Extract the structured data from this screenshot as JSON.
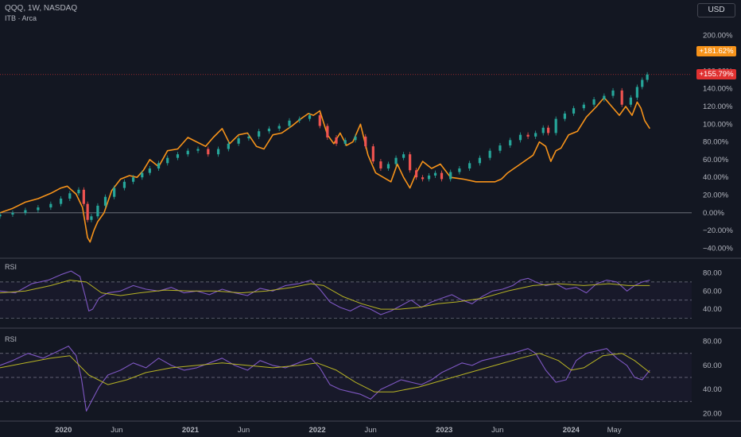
{
  "header": {
    "symbol_line": "QQQ, 1W, NASDAQ",
    "compare_line": "ITB · Arca",
    "currency_button": "USD"
  },
  "badges": {
    "itb": {
      "text": "+181.62%",
      "color": "#f7931a"
    },
    "qqq": {
      "text": "+155.79%",
      "color": "#e03131"
    }
  },
  "colors": {
    "background": "#131722",
    "itb_line": "#f7931a",
    "candle_up": "#26a69a",
    "candle_down": "#ef5350",
    "rsi_line": "#7e57c2",
    "rsi_ma": "#b7b324",
    "grid": "#2a2e39",
    "axis_text": "#b2b5be"
  },
  "chart_data": [
    {
      "type": "line",
      "title": "QQQ, 1W, NASDAQ",
      "yaxis_format": "percent",
      "ylim": [
        -45,
        215
      ],
      "yticks": [
        -40,
        -20,
        0,
        20,
        40,
        60,
        80,
        100,
        120,
        140,
        160,
        180,
        200
      ],
      "x_domain": [
        2019.5,
        2024.95
      ],
      "series": [
        {
          "name": "ITB · Arca",
          "style": "line",
          "color": "#f7931a",
          "x": [
            2019.5,
            2019.6,
            2019.7,
            2019.8,
            2019.9,
            2019.98,
            2020.03,
            2020.1,
            2020.15,
            2020.19,
            2020.21,
            2020.24,
            2020.27,
            2020.32,
            2020.38,
            2020.45,
            2020.52,
            2020.58,
            2020.63,
            2020.68,
            2020.75,
            2020.82,
            2020.9,
            2020.98,
            2021.05,
            2021.12,
            2021.18,
            2021.25,
            2021.31,
            2021.38,
            2021.45,
            2021.52,
            2021.58,
            2021.65,
            2021.72,
            2021.8,
            2021.86,
            2021.93,
            2021.97,
            2022.02,
            2022.08,
            2022.13,
            2022.18,
            2022.23,
            2022.28,
            2022.34,
            2022.4,
            2022.46,
            2022.52,
            2022.58,
            2022.63,
            2022.68,
            2022.73,
            2022.78,
            2022.83,
            2022.9,
            2022.97,
            2023.05,
            2023.15,
            2023.25,
            2023.33,
            2023.4,
            2023.45,
            2023.5,
            2023.55,
            2023.6,
            2023.65,
            2023.7,
            2023.75,
            2023.8,
            2023.84,
            2023.88,
            2023.92,
            2023.98,
            2024.05,
            2024.12,
            2024.2,
            2024.26,
            2024.32,
            2024.38,
            2024.43,
            2024.48,
            2024.52,
            2024.55,
            2024.58,
            2024.62
          ],
          "y": [
            0,
            5,
            12,
            16,
            22,
            28,
            30,
            21,
            6,
            -28,
            -33,
            -20,
            -10,
            0,
            25,
            38,
            42,
            40,
            48,
            60,
            52,
            70,
            72,
            85,
            80,
            75,
            85,
            95,
            78,
            88,
            90,
            75,
            72,
            88,
            90,
            98,
            105,
            112,
            110,
            115,
            88,
            78,
            90,
            76,
            80,
            100,
            65,
            45,
            40,
            35,
            55,
            40,
            28,
            45,
            58,
            50,
            55,
            40,
            38,
            35,
            35,
            35,
            38,
            45,
            50,
            55,
            60,
            65,
            80,
            75,
            58,
            70,
            73,
            88,
            92,
            108,
            120,
            130,
            120,
            110,
            120,
            110,
            125,
            118,
            104,
            95
          ]
        },
        {
          "name": "QQQ",
          "style": "candle",
          "x": [
            2019.5,
            2019.6,
            2019.7,
            2019.8,
            2019.9,
            2019.98,
            2020.05,
            2020.12,
            2020.16,
            2020.19,
            2020.22,
            2020.27,
            2020.33,
            2020.4,
            2020.48,
            2020.55,
            2020.62,
            2020.68,
            2020.75,
            2020.82,
            2020.9,
            2020.98,
            2021.06,
            2021.14,
            2021.22,
            2021.3,
            2021.38,
            2021.46,
            2021.54,
            2021.62,
            2021.7,
            2021.78,
            2021.86,
            2021.94,
            2022.02,
            2022.08,
            2022.15,
            2022.22,
            2022.3,
            2022.38,
            2022.44,
            2022.5,
            2022.56,
            2022.62,
            2022.68,
            2022.73,
            2022.78,
            2022.83,
            2022.88,
            2022.93,
            2022.98,
            2023.05,
            2023.12,
            2023.2,
            2023.28,
            2023.36,
            2023.44,
            2023.52,
            2023.6,
            2023.66,
            2023.72,
            2023.78,
            2023.82,
            2023.88,
            2023.95,
            2024.02,
            2024.1,
            2024.18,
            2024.26,
            2024.33,
            2024.4,
            2024.47,
            2024.52,
            2024.56,
            2024.6
          ],
          "y": [
            -2,
            0,
            3,
            6,
            10,
            16,
            22,
            26,
            10,
            -8,
            -4,
            8,
            18,
            28,
            35,
            40,
            45,
            50,
            56,
            62,
            66,
            70,
            72,
            66,
            72,
            78,
            84,
            86,
            92,
            95,
            98,
            104,
            106,
            110,
            98,
            85,
            78,
            82,
            86,
            75,
            58,
            50,
            55,
            62,
            66,
            48,
            40,
            38,
            42,
            45,
            38,
            46,
            50,
            56,
            62,
            70,
            76,
            82,
            88,
            86,
            90,
            96,
            90,
            106,
            112,
            118,
            122,
            128,
            132,
            138,
            122,
            130,
            142,
            150,
            156
          ]
        }
      ]
    },
    {
      "type": "line",
      "title": "RSI",
      "ylim": [
        20,
        90
      ],
      "yticks": [
        40,
        60,
        80
      ],
      "bands": [
        70,
        50,
        30
      ],
      "x_domain": [
        2019.5,
        2024.95
      ],
      "series": [
        {
          "name": "RSI",
          "color": "#7e57c2",
          "x": [
            2019.5,
            2019.62,
            2019.75,
            2019.88,
            2019.98,
            2020.06,
            2020.13,
            2020.17,
            2020.2,
            2020.23,
            2020.28,
            2020.35,
            2020.45,
            2020.55,
            2020.65,
            2020.75,
            2020.85,
            2020.95,
            2021.05,
            2021.15,
            2021.25,
            2021.35,
            2021.45,
            2021.55,
            2021.65,
            2021.75,
            2021.85,
            2021.95,
            2022.02,
            2022.1,
            2022.18,
            2022.26,
            2022.34,
            2022.42,
            2022.5,
            2022.58,
            2022.66,
            2022.74,
            2022.82,
            2022.9,
            2022.98,
            2023.06,
            2023.14,
            2023.22,
            2023.3,
            2023.38,
            2023.46,
            2023.54,
            2023.6,
            2023.66,
            2023.72,
            2023.8,
            2023.88,
            2023.96,
            2024.04,
            2024.12,
            2024.2,
            2024.28,
            2024.36,
            2024.44,
            2024.5,
            2024.56,
            2024.62
          ],
          "y": [
            60,
            58,
            68,
            72,
            78,
            82,
            76,
            55,
            38,
            40,
            52,
            58,
            60,
            66,
            62,
            60,
            64,
            58,
            60,
            56,
            62,
            58,
            55,
            63,
            60,
            66,
            68,
            72,
            62,
            48,
            42,
            38,
            44,
            40,
            34,
            38,
            44,
            50,
            42,
            48,
            52,
            56,
            50,
            46,
            54,
            60,
            62,
            66,
            72,
            74,
            70,
            66,
            68,
            62,
            64,
            58,
            68,
            72,
            70,
            60,
            66,
            70,
            72
          ]
        },
        {
          "name": "RSI MA",
          "color": "#b7b324",
          "x": [
            2019.5,
            2019.7,
            2019.9,
            2020.05,
            2020.18,
            2020.3,
            2020.45,
            2020.6,
            2020.8,
            2021.0,
            2021.2,
            2021.4,
            2021.6,
            2021.8,
            2021.95,
            2022.05,
            2022.2,
            2022.35,
            2022.5,
            2022.65,
            2022.8,
            2022.95,
            2023.1,
            2023.3,
            2023.5,
            2023.7,
            2023.9,
            2024.1,
            2024.3,
            2024.45,
            2024.62
          ],
          "y": [
            58,
            60,
            66,
            72,
            70,
            58,
            55,
            58,
            61,
            60,
            60,
            58,
            60,
            64,
            68,
            66,
            54,
            46,
            40,
            40,
            42,
            46,
            48,
            52,
            60,
            66,
            68,
            66,
            68,
            66,
            66
          ]
        }
      ]
    },
    {
      "type": "line",
      "title": "RSI",
      "ylim": [
        15,
        85
      ],
      "yticks": [
        20,
        40,
        60,
        80
      ],
      "bands": [
        70,
        50,
        30
      ],
      "x_domain": [
        2019.5,
        2024.95
      ],
      "xticks": [
        "2020",
        "Jun",
        "2021",
        "Jun",
        "2022",
        "Jun",
        "2023",
        "Jun",
        "2024",
        "May"
      ],
      "xtick_positions": [
        2020.0,
        2020.42,
        2021.0,
        2021.42,
        2022.0,
        2022.42,
        2023.0,
        2023.42,
        2024.0,
        2024.34
      ],
      "series": [
        {
          "name": "RSI",
          "color": "#7e57c2",
          "x": [
            2019.5,
            2019.6,
            2019.72,
            2019.84,
            2019.96,
            2020.04,
            2020.1,
            2020.14,
            2020.18,
            2020.22,
            2020.28,
            2020.35,
            2020.45,
            2020.55,
            2020.65,
            2020.75,
            2020.85,
            2020.95,
            2021.05,
            2021.15,
            2021.25,
            2021.35,
            2021.45,
            2021.55,
            2021.65,
            2021.75,
            2021.85,
            2021.95,
            2022.02,
            2022.1,
            2022.18,
            2022.26,
            2022.34,
            2022.42,
            2022.5,
            2022.58,
            2022.66,
            2022.74,
            2022.82,
            2022.9,
            2022.98,
            2023.06,
            2023.14,
            2023.22,
            2023.3,
            2023.38,
            2023.46,
            2023.54,
            2023.6,
            2023.66,
            2023.72,
            2023.8,
            2023.88,
            2023.96,
            2024.04,
            2024.12,
            2024.2,
            2024.28,
            2024.36,
            2024.44,
            2024.5,
            2024.56,
            2024.62
          ],
          "y": [
            60,
            64,
            70,
            66,
            72,
            76,
            68,
            50,
            22,
            30,
            42,
            52,
            56,
            62,
            58,
            66,
            60,
            56,
            58,
            62,
            66,
            60,
            56,
            64,
            60,
            58,
            62,
            66,
            58,
            44,
            40,
            38,
            36,
            32,
            40,
            44,
            48,
            46,
            44,
            48,
            54,
            58,
            62,
            60,
            64,
            66,
            68,
            70,
            72,
            74,
            70,
            56,
            46,
            48,
            64,
            70,
            72,
            74,
            66,
            60,
            50,
            48,
            56
          ]
        },
        {
          "name": "RSI MA",
          "color": "#b7b324",
          "x": [
            2019.5,
            2019.7,
            2019.9,
            2020.05,
            2020.2,
            2020.35,
            2020.5,
            2020.65,
            2020.85,
            2021.05,
            2021.25,
            2021.45,
            2021.65,
            2021.85,
            2022.0,
            2022.15,
            2022.3,
            2022.45,
            2022.6,
            2022.8,
            2023.0,
            2023.2,
            2023.4,
            2023.6,
            2023.75,
            2023.9,
            2024.0,
            2024.1,
            2024.25,
            2024.4,
            2024.5,
            2024.62
          ],
          "y": [
            58,
            62,
            66,
            68,
            52,
            44,
            48,
            54,
            58,
            60,
            62,
            60,
            58,
            60,
            62,
            56,
            46,
            38,
            38,
            42,
            48,
            54,
            60,
            66,
            70,
            64,
            56,
            58,
            68,
            70,
            64,
            54
          ]
        }
      ]
    }
  ]
}
